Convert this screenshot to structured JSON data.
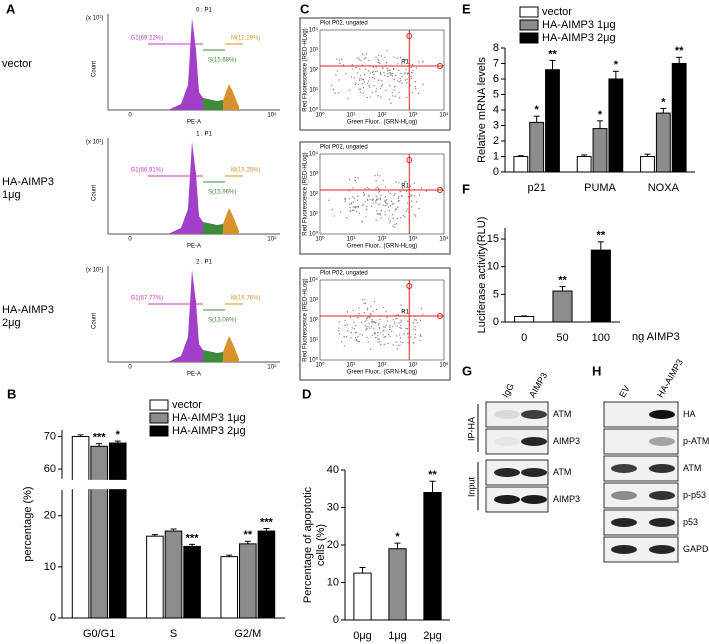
{
  "chart_data": [
    {
      "type": "bar",
      "panel": "B",
      "ylabel": "percentage (%)",
      "categories": [
        "G0/G1",
        "S",
        "G2/M"
      ],
      "series": [
        {
          "name": "vector",
          "color": "#ffffff",
          "values": [
            70,
            16,
            12
          ],
          "errors": [
            0.5,
            0.3,
            0.3
          ],
          "labels": [
            null,
            null,
            null
          ]
        },
        {
          "name": "HA-AIMP3 1μg",
          "color": "#8c8c8c",
          "values": [
            67,
            17,
            14.5
          ],
          "errors": [
            0.8,
            0.4,
            0.5
          ],
          "labels": [
            "***",
            null,
            "**"
          ]
        },
        {
          "name": "HA-AIMP3 2μg",
          "color": "#000000",
          "values": [
            68,
            14,
            17
          ],
          "errors": [
            0.6,
            0.4,
            0.5
          ],
          "labels": [
            "*",
            "***",
            "***"
          ]
        }
      ],
      "ylim": [
        0,
        72
      ],
      "ybreak": [
        25,
        57
      ],
      "yticks": [
        0,
        10,
        20,
        60,
        70
      ]
    },
    {
      "type": "bar",
      "panel": "D",
      "ylabel": [
        "Percentage of apoptotic",
        "cells (%)"
      ],
      "categories": [
        "0μg",
        "1μg",
        "2μg"
      ],
      "values": [
        12.5,
        19,
        34
      ],
      "errors": [
        1.5,
        1.5,
        3
      ],
      "labels": [
        null,
        "*",
        "**"
      ],
      "colors": [
        "#ffffff",
        "#8c8c8c",
        "#000000"
      ],
      "ylim": [
        0,
        40
      ],
      "yticks": [
        0,
        10,
        20,
        30,
        40
      ]
    },
    {
      "type": "bar",
      "panel": "E",
      "ylabel": "Relative mRNA levels",
      "categories": [
        "p21",
        "PUMA",
        "NOXA"
      ],
      "series": [
        {
          "name": "vector",
          "color": "#ffffff",
          "values": [
            1,
            1,
            1
          ],
          "errors": [
            0.05,
            0.1,
            0.15
          ],
          "labels": [
            null,
            null,
            null
          ]
        },
        {
          "name": "HA-AIMP3 1μg",
          "color": "#8c8c8c",
          "values": [
            3.2,
            2.8,
            3.8
          ],
          "errors": [
            0.4,
            0.5,
            0.3
          ],
          "labels": [
            "*",
            "*",
            "*"
          ]
        },
        {
          "name": "HA-AIMP3 2μg",
          "color": "#000000",
          "values": [
            6.6,
            6.0,
            7.0
          ],
          "errors": [
            0.6,
            0.5,
            0.4
          ],
          "labels": [
            "**",
            "*",
            "**"
          ]
        }
      ],
      "ylim": [
        0,
        8
      ],
      "yticks": [
        0,
        1,
        2,
        3,
        4,
        5,
        6,
        7,
        8
      ]
    },
    {
      "type": "bar",
      "panel": "F",
      "ylabel": "Luciferase activity(RLU)",
      "xlabel": "ng AIMP3",
      "categories": [
        "0",
        "50",
        "100"
      ],
      "values": [
        1,
        5.6,
        13
      ],
      "errors": [
        0.1,
        0.8,
        1.5
      ],
      "labels": [
        null,
        "**",
        "**"
      ],
      "colors": [
        "#ffffff",
        "#8c8c8c",
        "#000000"
      ],
      "ylim": [
        0,
        17
      ],
      "yticks": [
        0,
        5,
        10,
        15
      ]
    }
  ],
  "flow_histograms": {
    "panel": "A",
    "ylabel": "Count",
    "xlabel": "PE-A",
    "xticks": [
      "0",
      "10⁵"
    ],
    "rows": [
      {
        "label": [
          "vector"
        ],
        "title": "0 : P1",
        "scale": "(x 10¹)",
        "gates": [
          "G1(69.22%)",
          "S(15.68%)",
          "M(12.29%)"
        ]
      },
      {
        "label": [
          "HA-AIMP3",
          "1μg"
        ],
        "title": "1 : P1",
        "scale": "(x 10¹)",
        "gates": [
          "G1(66.91%)",
          "S(15.96%)",
          "M(15.25%)"
        ]
      },
      {
        "label": [
          "HA-AIMP3",
          "2μg"
        ],
        "title": "2 : P1",
        "scale": "(x 10¹)",
        "gates": [
          "G1(67.77%)",
          "S(13.08%)",
          "M(16.76%)"
        ]
      }
    ]
  },
  "dot_plots": {
    "panel": "C",
    "ylabel": "Red Fluorescence (RED-HLog)",
    "xlabel": "Green Fluor.. (GRN-HLog)",
    "region": "R1",
    "ticks": [
      "10⁰",
      "10¹",
      "10²",
      "10³",
      "10⁴"
    ],
    "titles": [
      "Plot P02, ungated",
      "Plot P02, ungated",
      "Plot P02, ungated"
    ]
  },
  "blots": [
    {
      "panel": "G",
      "lanes": [
        "IgG",
        "AIMP3"
      ],
      "groups": [
        {
          "label": "IP-HA",
          "rows": [
            "ATM",
            "AIMP3"
          ]
        },
        {
          "label": "Input",
          "rows": [
            "ATM",
            "AIMP3"
          ]
        }
      ]
    },
    {
      "panel": "H",
      "lanes": [
        "EV",
        "HA-AIMP3"
      ],
      "groups": [
        {
          "rows": [
            "HA",
            "p-ATM",
            "ATM",
            "p-p53",
            "p53",
            "GAPDH"
          ]
        }
      ]
    }
  ]
}
